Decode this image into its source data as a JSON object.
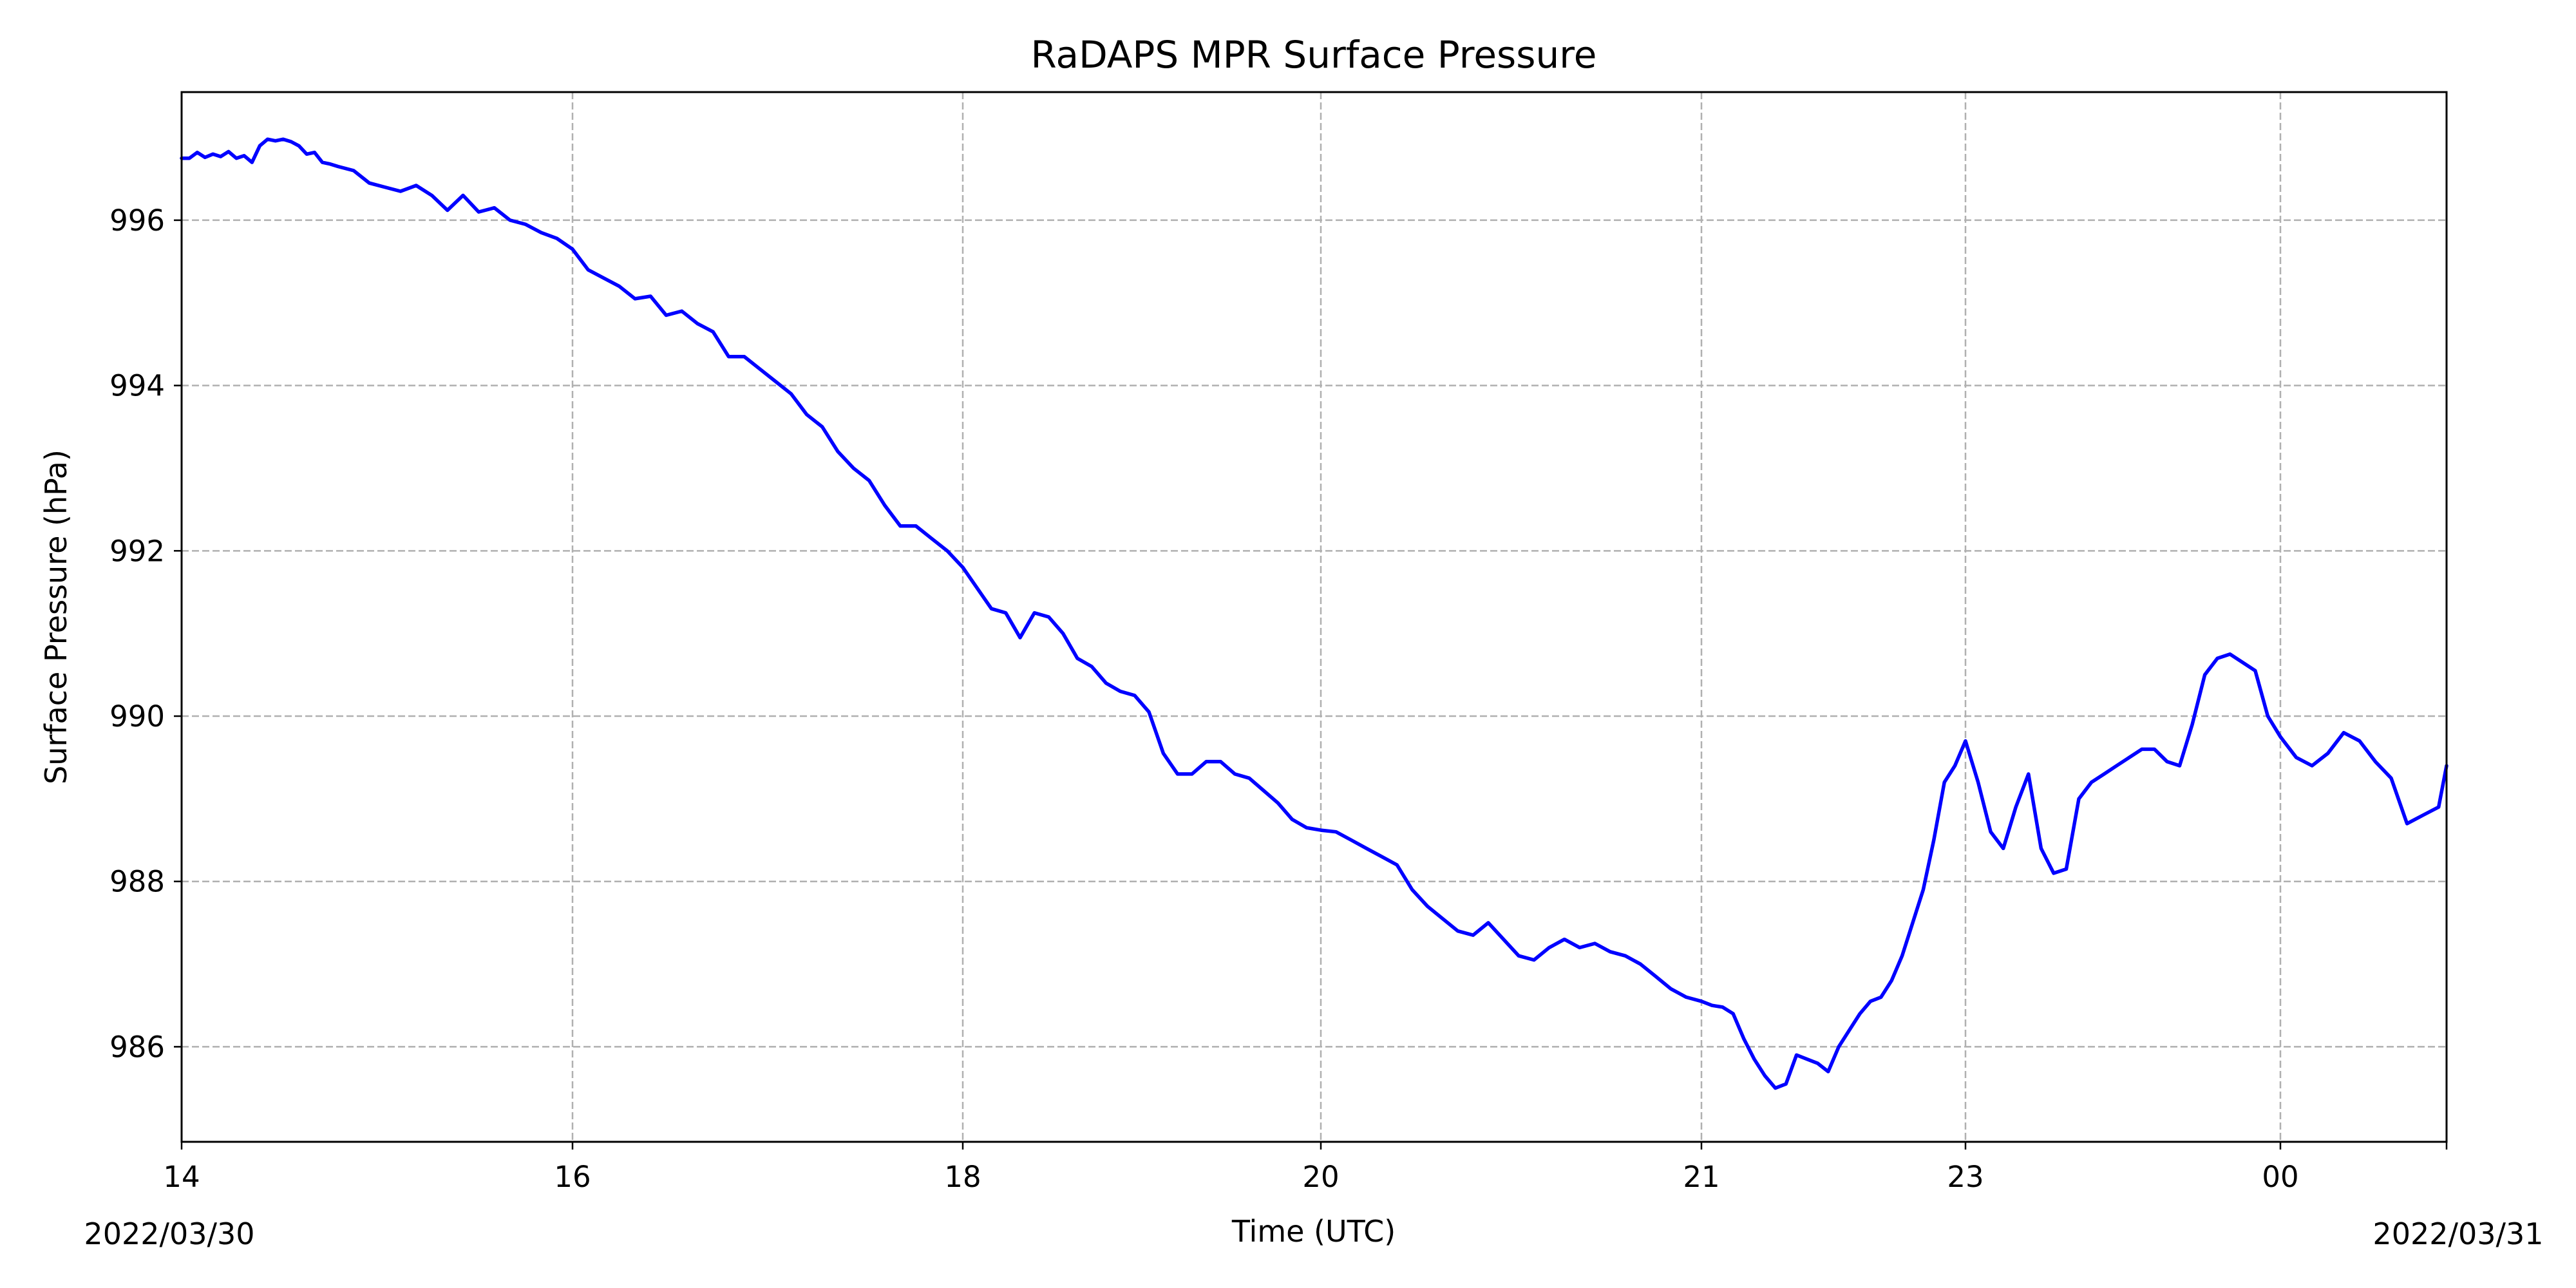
{
  "chart_data": {
    "type": "line",
    "title": "RaDAPS MPR Surface Pressure",
    "xlabel": "Time (UTC)",
    "ylabel": "Surface Pressure (hPa)",
    "x_tick_labels": [
      "14",
      "16",
      "18",
      "20",
      "21",
      "23",
      "00"
    ],
    "x_tick_positions": [
      0,
      1,
      2,
      3,
      4,
      5,
      6
    ],
    "x_range": [
      0,
      6.42
    ],
    "x_start_date_label": "2022/03/30",
    "x_end_date_label": "2022/03/31",
    "yticks": [
      986,
      988,
      990,
      992,
      994,
      996
    ],
    "ylim": [
      984.85,
      997.55
    ],
    "grid": true,
    "series": [
      {
        "name": "",
        "color": "#0000ff",
        "x": [
          0.0,
          0.02,
          0.04,
          0.06,
          0.08,
          0.1,
          0.12,
          0.14,
          0.16,
          0.18,
          0.2,
          0.22,
          0.24,
          0.26,
          0.28,
          0.3,
          0.32,
          0.34,
          0.36,
          0.38,
          0.4,
          0.44,
          0.48,
          0.52,
          0.56,
          0.6,
          0.64,
          0.68,
          0.72,
          0.76,
          0.8,
          0.84,
          0.88,
          0.92,
          0.96,
          1.0,
          1.04,
          1.08,
          1.12,
          1.16,
          1.2,
          1.24,
          1.28,
          1.32,
          1.36,
          1.4,
          1.44,
          1.48,
          1.52,
          1.56,
          1.6,
          1.64,
          1.68,
          1.72,
          1.76,
          1.8,
          1.84,
          1.88,
          1.92,
          1.96,
          2.0,
          2.04,
          2.08,
          2.12,
          2.16,
          2.2,
          2.24,
          2.28,
          2.32,
          2.36,
          2.4,
          2.44,
          2.48,
          2.52,
          2.56,
          2.6,
          2.64,
          2.68,
          2.72,
          2.76,
          2.8,
          2.84,
          2.88,
          2.92,
          2.96,
          3.0,
          3.04,
          3.08,
          3.12,
          3.16,
          3.2,
          3.24,
          3.28,
          3.32,
          3.36,
          3.4,
          3.44,
          3.48,
          3.52,
          3.56,
          3.6,
          3.64,
          3.68,
          3.72,
          3.76,
          3.8,
          3.84,
          3.88,
          3.92,
          3.96,
          4.0,
          4.04,
          4.08,
          4.12,
          4.16,
          4.2,
          4.24,
          4.28,
          4.32,
          4.36,
          4.4,
          4.44,
          4.48,
          4.52,
          4.56,
          4.6,
          4.64,
          4.68,
          4.72,
          4.76,
          4.8,
          4.84,
          4.88,
          4.92,
          4.96,
          5.0,
          5.04,
          5.08,
          5.12,
          5.16,
          5.2,
          5.24,
          5.28,
          5.32,
          5.36,
          5.4,
          5.44,
          5.48,
          5.52,
          5.56,
          5.6,
          5.64,
          5.68,
          5.72,
          5.76,
          5.8,
          5.84,
          5.88,
          5.92,
          5.96,
          6.0,
          6.04,
          6.08,
          6.12,
          6.16,
          6.2,
          6.24,
          6.28,
          6.32,
          6.36,
          6.4,
          6.42
        ],
        "y": [
          996.75,
          996.75,
          996.82,
          996.76,
          996.8,
          996.77,
          996.83,
          996.75,
          996.78,
          996.7,
          996.9,
          996.98,
          996.96,
          996.98,
          996.95,
          996.9,
          996.8,
          996.82,
          996.7,
          996.68,
          996.65,
          996.6,
          996.45,
          996.4,
          996.35,
          996.42,
          996.3,
          996.12,
          996.3,
          996.1,
          996.15,
          996.0,
          995.95,
          995.85,
          995.78,
          995.65,
          995.4,
          995.3,
          995.2,
          995.05,
          995.08,
          994.85,
          994.9,
          994.75,
          994.65,
          994.35,
          994.35,
          994.2,
          994.05,
          993.9,
          993.65,
          993.5,
          993.2,
          993.0,
          992.85,
          992.55,
          992.3,
          992.3,
          992.15,
          992.0,
          991.8,
          991.55,
          991.3,
          991.25,
          990.95,
          991.25,
          991.2,
          991.0,
          990.7,
          990.6,
          990.4,
          990.3,
          990.25,
          990.05,
          989.55,
          989.3,
          989.3,
          989.45,
          989.45,
          989.3,
          989.25,
          989.1,
          988.95,
          988.75,
          988.65,
          988.62,
          988.6,
          988.5,
          988.4,
          988.3,
          988.2,
          987.9,
          987.7,
          987.55,
          987.4,
          987.35,
          987.5,
          987.3,
          987.1,
          987.05,
          987.2,
          987.3,
          987.2,
          987.25,
          987.15,
          987.1,
          987.0,
          986.85,
          986.7,
          986.6,
          986.55,
          986.5,
          986.48,
          986.4,
          986.1,
          985.85,
          985.65,
          985.5,
          985.55,
          985.9,
          985.85,
          985.8,
          985.7,
          986.0,
          986.2,
          986.4,
          986.55,
          986.6,
          986.8,
          987.1,
          987.5,
          987.9,
          988.5,
          989.2,
          989.4,
          989.7,
          989.2,
          988.6,
          988.4,
          988.9,
          989.3,
          988.4,
          988.1,
          988.15,
          989.0,
          989.2,
          989.3,
          989.4,
          989.5,
          989.6,
          989.6,
          989.45,
          989.4,
          989.9,
          990.5,
          990.7,
          990.75,
          990.65,
          990.55,
          990.0,
          989.75,
          989.5,
          989.4,
          989.55,
          989.8,
          989.7,
          989.45,
          989.25,
          988.7,
          988.8,
          988.9,
          989.4
        ]
      }
    ]
  }
}
